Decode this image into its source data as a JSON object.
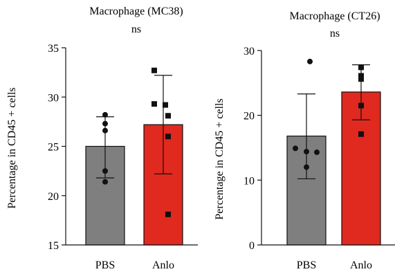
{
  "chart_data": [
    {
      "type": "bar",
      "title": "Macrophage (MC38)",
      "subtitle": "ns",
      "ylabel": "Percentage in CD45 + cells",
      "xlabel": "",
      "categories": [
        "PBS",
        "Anlo"
      ],
      "values": [
        25.0,
        27.2
      ],
      "error_upper": [
        28.0,
        32.2
      ],
      "error_lower": [
        21.8,
        22.2
      ],
      "points": [
        [
          28.2,
          27.3,
          26.6,
          22.5,
          21.4
        ],
        [
          32.7,
          29.3,
          29.2,
          28.1,
          26.0,
          18.1
        ]
      ],
      "colors": [
        "#7f7f7f",
        "#e0291f"
      ],
      "ylim": [
        15,
        35
      ],
      "yticks": [
        "15",
        "20",
        "25",
        "30",
        "35"
      ],
      "grid": false
    },
    {
      "type": "bar",
      "title": "Macrophage (CT26)",
      "subtitle": "ns",
      "ylabel": "Percentage in CD45 + cells",
      "xlabel": "",
      "categories": [
        "PBS",
        "Anlo"
      ],
      "values": [
        16.8,
        23.6
      ],
      "error_upper": [
        23.3,
        27.8
      ],
      "error_lower": [
        10.2,
        19.3
      ],
      "points": [
        [
          28.3,
          14.9,
          14.4,
          14.3,
          12.0
        ],
        [
          27.4,
          26.1,
          25.6,
          21.5,
          17.1
        ]
      ],
      "colors": [
        "#7f7f7f",
        "#e0291f"
      ],
      "ylim": [
        0,
        30
      ],
      "yticks": [
        "0",
        "10",
        "20",
        "30"
      ],
      "grid": false
    }
  ]
}
